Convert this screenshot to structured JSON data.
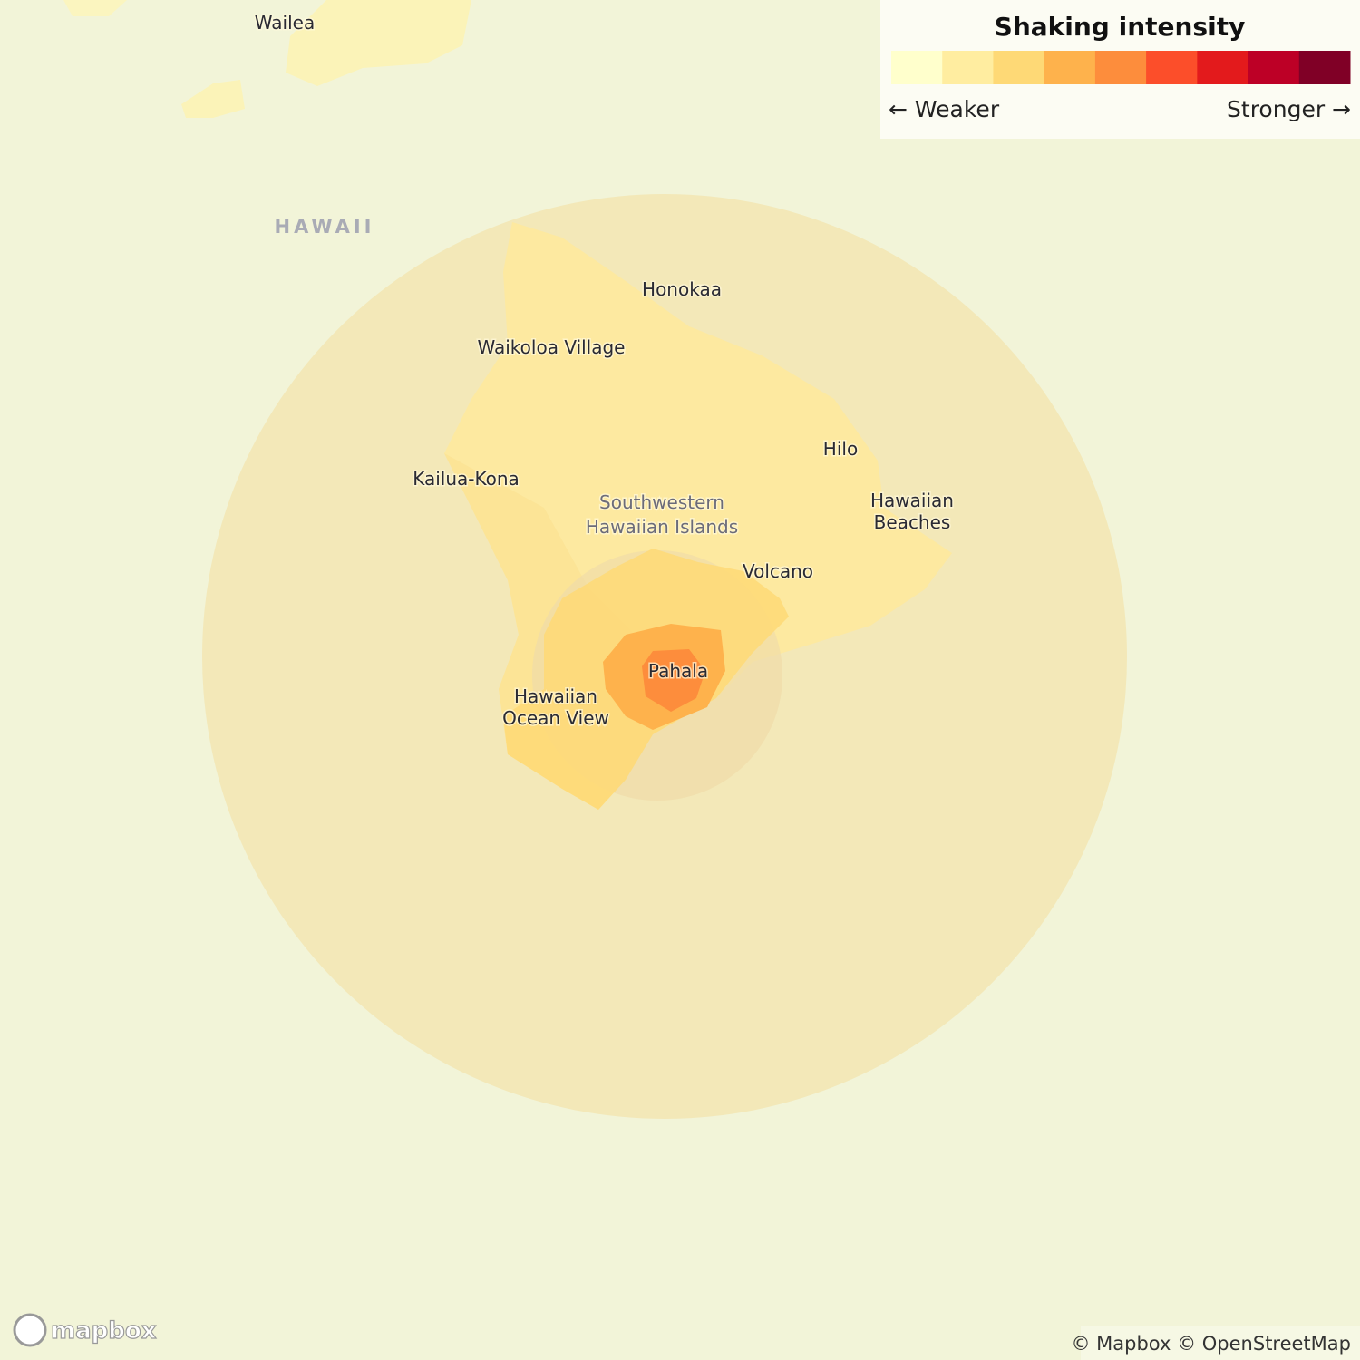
{
  "legend": {
    "title": "Shaking intensity",
    "weaker": "← Weaker",
    "stronger": "Stronger →",
    "colors": [
      "#ffffcc",
      "#ffeda0",
      "#fed976",
      "#feb24c",
      "#fd8d3c",
      "#fc4e2a",
      "#e31a1c",
      "#bd0026",
      "#800026"
    ]
  },
  "region_label": "HAWAII",
  "places": [
    {
      "lines": [
        "Wailea"
      ]
    },
    {
      "lines": [
        "Honokaa"
      ]
    },
    {
      "lines": [
        "Waikoloa Village"
      ]
    },
    {
      "lines": [
        "Hilo"
      ]
    },
    {
      "lines": [
        "Kailua-Kona"
      ]
    },
    {
      "lines": [
        "Southwestern",
        "Hawaiian Islands"
      ]
    },
    {
      "lines": [
        "Hawaiian",
        "Beaches"
      ]
    },
    {
      "lines": [
        "Volcano"
      ]
    },
    {
      "lines": [
        "Pahala"
      ]
    },
    {
      "lines": [
        "Hawaiian",
        "Ocean View"
      ]
    }
  ],
  "logo": "mapbox",
  "attribution": "© Mapbox © OpenStreetMap"
}
